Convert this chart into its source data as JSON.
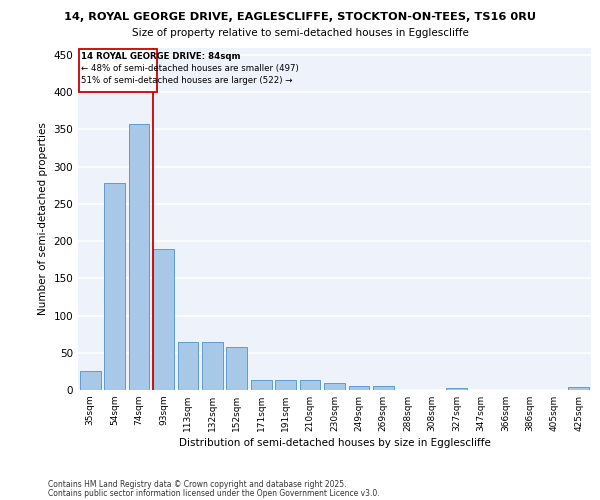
{
  "title_line1": "14, ROYAL GEORGE DRIVE, EAGLESCLIFFE, STOCKTON-ON-TEES, TS16 0RU",
  "title_line2": "Size of property relative to semi-detached houses in Egglescliffe",
  "xlabel": "Distribution of semi-detached houses by size in Egglescliffe",
  "ylabel": "Number of semi-detached properties",
  "categories": [
    "35sqm",
    "54sqm",
    "74sqm",
    "93sqm",
    "113sqm",
    "132sqm",
    "152sqm",
    "171sqm",
    "191sqm",
    "210sqm",
    "230sqm",
    "249sqm",
    "269sqm",
    "288sqm",
    "308sqm",
    "327sqm",
    "347sqm",
    "366sqm",
    "386sqm",
    "405sqm",
    "425sqm"
  ],
  "values": [
    26,
    278,
    357,
    190,
    65,
    65,
    58,
    14,
    14,
    13,
    10,
    6,
    6,
    0,
    0,
    3,
    0,
    0,
    0,
    0,
    4
  ],
  "bar_color": "#a8c8e8",
  "bar_edge_color": "#5b9bd5",
  "background_color": "#eef2fb",
  "grid_color": "#ffffff",
  "marker_line_color": "#cc0000",
  "annotation_title": "14 ROYAL GEORGE DRIVE: 84sqm",
  "annotation_line1": "← 48% of semi-detached houses are smaller (497)",
  "annotation_line2": "51% of semi-detached houses are larger (522) →",
  "annotation_box_color": "#cc0000",
  "footer_line1": "Contains HM Land Registry data © Crown copyright and database right 2025.",
  "footer_line2": "Contains public sector information licensed under the Open Government Licence v3.0.",
  "ylim": [
    0,
    460
  ],
  "yticks": [
    0,
    50,
    100,
    150,
    200,
    250,
    300,
    350,
    400,
    450
  ]
}
